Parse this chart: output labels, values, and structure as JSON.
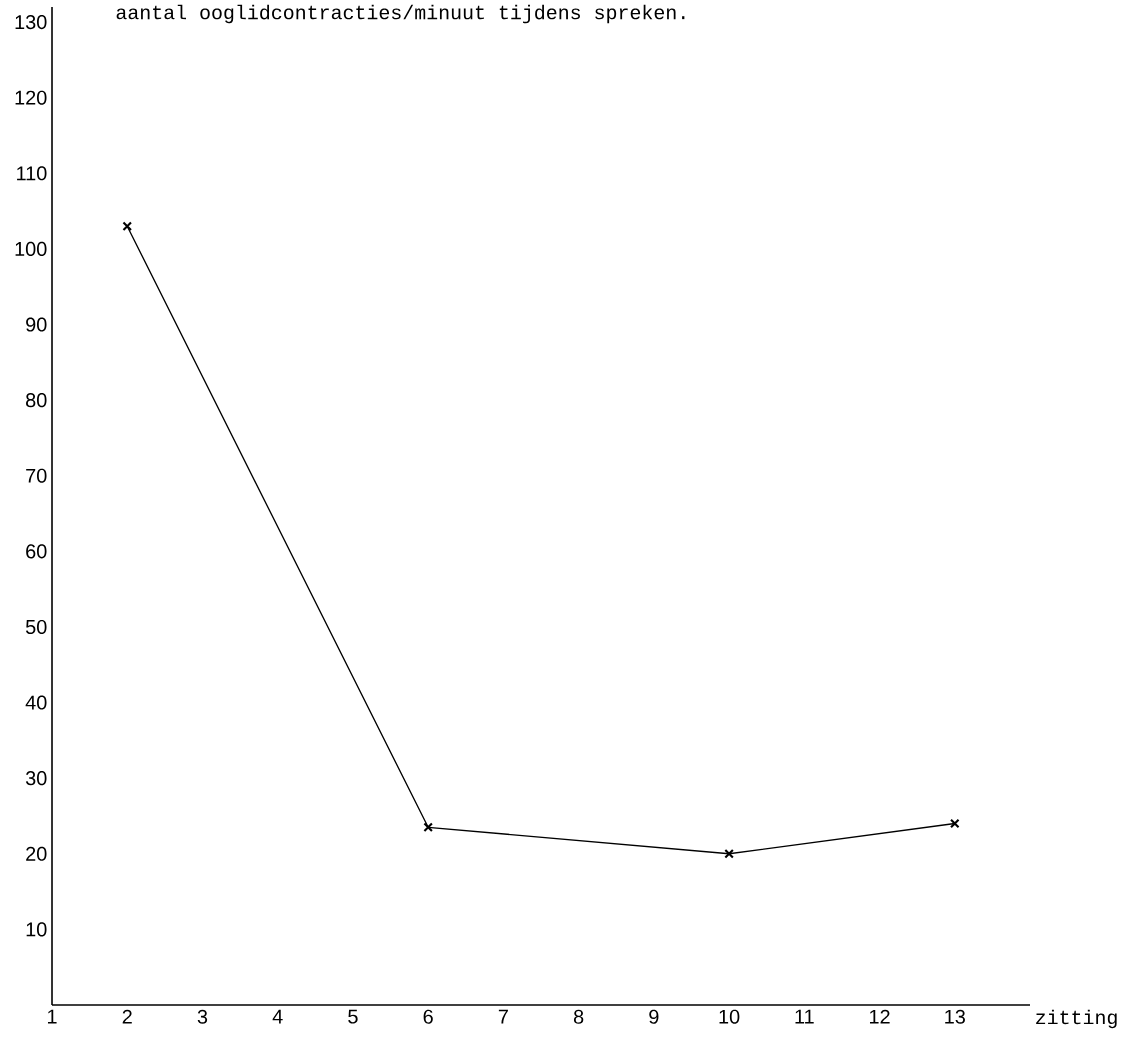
{
  "chart_data": {
    "type": "line",
    "title": "aantal ooglidcontracties/minuut tijdens spreken.",
    "xlabel": "zitting",
    "x": [
      2,
      6,
      10,
      13
    ],
    "values": [
      103,
      23.5,
      20,
      24
    ],
    "color": "#000000",
    "marker": "cross",
    "line_style": "solid",
    "xlim": [
      1,
      14
    ],
    "xticks": [
      1,
      2,
      3,
      4,
      5,
      6,
      7,
      8,
      9,
      10,
      11,
      12,
      13
    ],
    "ylim": [
      0,
      132
    ],
    "yticks": [
      10,
      20,
      30,
      40,
      50,
      60,
      70,
      80,
      90,
      100,
      110,
      120,
      130
    ]
  }
}
